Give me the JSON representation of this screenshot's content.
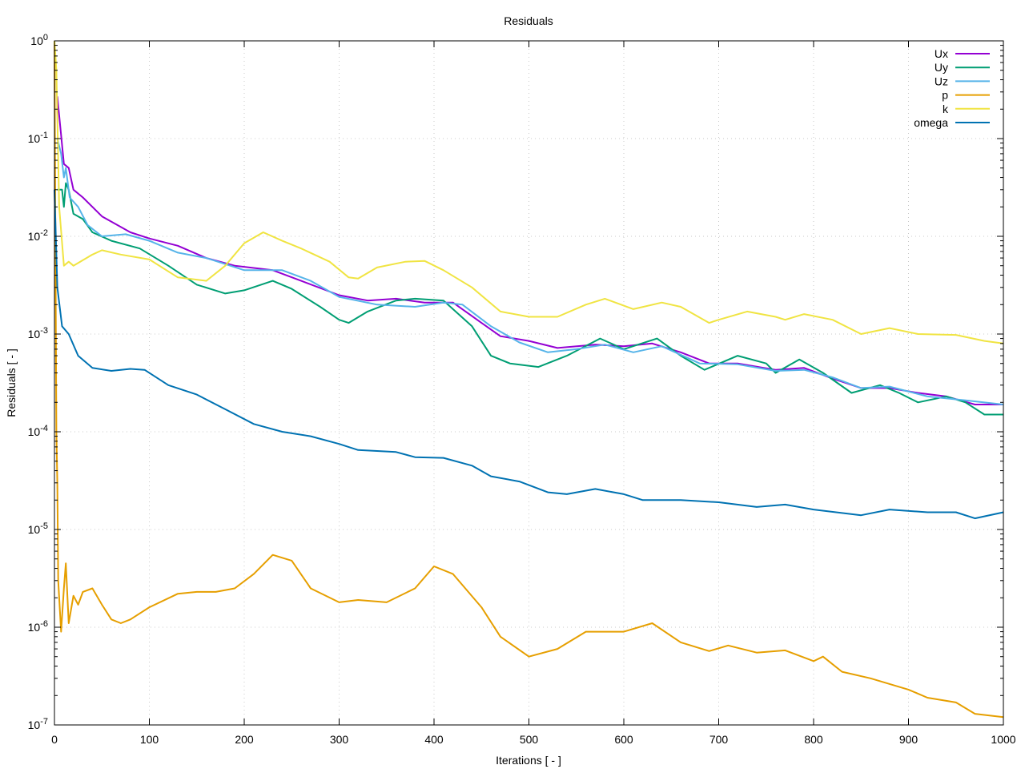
{
  "chart_data": {
    "type": "line",
    "title": "Residuals",
    "xlabel": "Iterations [ - ]",
    "ylabel": "Residuals [ - ]",
    "xlim": [
      0,
      1000
    ],
    "ylim": [
      1e-07,
      1
    ],
    "yscale": "log",
    "grid": true,
    "legend_position": "top-right",
    "xticks": [
      "0",
      "100",
      "200",
      "300",
      "400",
      "500",
      "600",
      "700",
      "800",
      "900",
      "1000"
    ],
    "yticks": [
      {
        "base": "10",
        "exp": "0",
        "value": 1
      },
      {
        "base": "10",
        "exp": "-1",
        "value": 0.1
      },
      {
        "base": "10",
        "exp": "-2",
        "value": 0.01
      },
      {
        "base": "10",
        "exp": "-3",
        "value": 0.001
      },
      {
        "base": "10",
        "exp": "-4",
        "value": 0.0001
      },
      {
        "base": "10",
        "exp": "-5",
        "value": 1e-05
      },
      {
        "base": "10",
        "exp": "-6",
        "value": 1e-06
      },
      {
        "base": "10",
        "exp": "-7",
        "value": 1e-07
      }
    ],
    "series": [
      {
        "name": "Ux",
        "color": "#9400d3",
        "points": [
          [
            3,
            0.27
          ],
          [
            10,
            0.055
          ],
          [
            15,
            0.05
          ],
          [
            20,
            0.03
          ],
          [
            30,
            0.025
          ],
          [
            50,
            0.016
          ],
          [
            80,
            0.011
          ],
          [
            100,
            0.0095
          ],
          [
            130,
            0.008
          ],
          [
            160,
            0.006
          ],
          [
            190,
            0.005
          ],
          [
            230,
            0.0045
          ],
          [
            260,
            0.0035
          ],
          [
            300,
            0.0025
          ],
          [
            330,
            0.0022
          ],
          [
            360,
            0.0023
          ],
          [
            390,
            0.0021
          ],
          [
            420,
            0.0021
          ],
          [
            450,
            0.0013
          ],
          [
            470,
            0.00095
          ],
          [
            500,
            0.00085
          ],
          [
            530,
            0.00072
          ],
          [
            570,
            0.00078
          ],
          [
            600,
            0.00075
          ],
          [
            630,
            0.0008
          ],
          [
            660,
            0.00065
          ],
          [
            690,
            0.0005
          ],
          [
            720,
            0.0005
          ],
          [
            760,
            0.00043
          ],
          [
            790,
            0.00045
          ],
          [
            820,
            0.00035
          ],
          [
            850,
            0.00028
          ],
          [
            880,
            0.00028
          ],
          [
            910,
            0.00025
          ],
          [
            940,
            0.00023
          ],
          [
            970,
            0.00019
          ],
          [
            1000,
            0.00019
          ]
        ]
      },
      {
        "name": "Uy",
        "color": "#009e73",
        "points": [
          [
            3,
            0.03
          ],
          [
            8,
            0.03
          ],
          [
            10,
            0.02
          ],
          [
            12,
            0.035
          ],
          [
            15,
            0.03
          ],
          [
            20,
            0.017
          ],
          [
            30,
            0.015
          ],
          [
            40,
            0.011
          ],
          [
            60,
            0.009
          ],
          [
            90,
            0.0075
          ],
          [
            120,
            0.005
          ],
          [
            150,
            0.0032
          ],
          [
            180,
            0.0026
          ],
          [
            200,
            0.0028
          ],
          [
            230,
            0.0035
          ],
          [
            250,
            0.0029
          ],
          [
            280,
            0.0019
          ],
          [
            300,
            0.0014
          ],
          [
            310,
            0.0013
          ],
          [
            330,
            0.0017
          ],
          [
            360,
            0.0022
          ],
          [
            380,
            0.0023
          ],
          [
            410,
            0.0022
          ],
          [
            440,
            0.0012
          ],
          [
            460,
            0.0006
          ],
          [
            480,
            0.0005
          ],
          [
            510,
            0.00046
          ],
          [
            540,
            0.0006
          ],
          [
            575,
            0.0009
          ],
          [
            600,
            0.0007
          ],
          [
            635,
            0.0009
          ],
          [
            660,
            0.0006
          ],
          [
            685,
            0.00043
          ],
          [
            720,
            0.0006
          ],
          [
            750,
            0.0005
          ],
          [
            760,
            0.0004
          ],
          [
            785,
            0.00055
          ],
          [
            810,
            0.0004
          ],
          [
            840,
            0.00025
          ],
          [
            870,
            0.0003
          ],
          [
            890,
            0.00025
          ],
          [
            910,
            0.0002
          ],
          [
            940,
            0.00023
          ],
          [
            960,
            0.0002
          ],
          [
            980,
            0.00015
          ],
          [
            1000,
            0.00015
          ]
        ]
      },
      {
        "name": "Uz",
        "color": "#56b4e9",
        "points": [
          [
            3,
            0.1
          ],
          [
            7,
            0.07
          ],
          [
            10,
            0.04
          ],
          [
            12,
            0.05
          ],
          [
            16,
            0.025
          ],
          [
            25,
            0.02
          ],
          [
            35,
            0.013
          ],
          [
            50,
            0.01
          ],
          [
            75,
            0.0105
          ],
          [
            100,
            0.009
          ],
          [
            130,
            0.0068
          ],
          [
            160,
            0.006
          ],
          [
            200,
            0.0045
          ],
          [
            240,
            0.0045
          ],
          [
            270,
            0.0035
          ],
          [
            300,
            0.0024
          ],
          [
            340,
            0.002
          ],
          [
            380,
            0.0019
          ],
          [
            410,
            0.0021
          ],
          [
            430,
            0.002
          ],
          [
            460,
            0.0012
          ],
          [
            490,
            0.00082
          ],
          [
            520,
            0.00065
          ],
          [
            550,
            0.0007
          ],
          [
            580,
            0.00078
          ],
          [
            610,
            0.00065
          ],
          [
            640,
            0.00075
          ],
          [
            680,
            0.0005
          ],
          [
            720,
            0.00049
          ],
          [
            760,
            0.00042
          ],
          [
            790,
            0.00043
          ],
          [
            820,
            0.00036
          ],
          [
            850,
            0.00028
          ],
          [
            880,
            0.00029
          ],
          [
            920,
            0.00023
          ],
          [
            960,
            0.00021
          ],
          [
            1000,
            0.00019
          ]
        ]
      },
      {
        "name": "p",
        "color": "#e69f00",
        "points": [
          [
            0,
            1
          ],
          [
            2,
            0.0001
          ],
          [
            3,
            3e-05
          ],
          [
            4,
            3e-06
          ],
          [
            7,
            9e-07
          ],
          [
            10,
            2.5e-06
          ],
          [
            12,
            4.5e-06
          ],
          [
            15,
            1.1e-06
          ],
          [
            20,
            2.1e-06
          ],
          [
            25,
            1.7e-06
          ],
          [
            30,
            2.3e-06
          ],
          [
            40,
            2.5e-06
          ],
          [
            50,
            1.7e-06
          ],
          [
            60,
            1.2e-06
          ],
          [
            70,
            1.1e-06
          ],
          [
            80,
            1.2e-06
          ],
          [
            100,
            1.6e-06
          ],
          [
            130,
            2.2e-06
          ],
          [
            150,
            2.3e-06
          ],
          [
            170,
            2.3e-06
          ],
          [
            190,
            2.5e-06
          ],
          [
            210,
            3.5e-06
          ],
          [
            230,
            5.5e-06
          ],
          [
            250,
            4.8e-06
          ],
          [
            270,
            2.5e-06
          ],
          [
            300,
            1.8e-06
          ],
          [
            320,
            1.9e-06
          ],
          [
            350,
            1.8e-06
          ],
          [
            380,
            2.5e-06
          ],
          [
            400,
            4.2e-06
          ],
          [
            420,
            3.5e-06
          ],
          [
            450,
            1.6e-06
          ],
          [
            470,
            8e-07
          ],
          [
            500,
            5e-07
          ],
          [
            530,
            6e-07
          ],
          [
            560,
            9e-07
          ],
          [
            600,
            9e-07
          ],
          [
            630,
            1.1e-06
          ],
          [
            660,
            7e-07
          ],
          [
            690,
            5.7e-07
          ],
          [
            710,
            6.5e-07
          ],
          [
            740,
            5.5e-07
          ],
          [
            770,
            5.8e-07
          ],
          [
            800,
            4.5e-07
          ],
          [
            810,
            5e-07
          ],
          [
            830,
            3.5e-07
          ],
          [
            860,
            3e-07
          ],
          [
            900,
            2.3e-07
          ],
          [
            920,
            1.9e-07
          ],
          [
            950,
            1.7e-07
          ],
          [
            970,
            1.3e-07
          ],
          [
            1000,
            1.2e-07
          ]
        ]
      },
      {
        "name": "k",
        "color": "#f0e442",
        "points": [
          [
            0,
            1
          ],
          [
            2,
            0.5
          ],
          [
            5,
            0.02
          ],
          [
            10,
            0.005
          ],
          [
            15,
            0.0055
          ],
          [
            20,
            0.005
          ],
          [
            40,
            0.0065
          ],
          [
            50,
            0.0072
          ],
          [
            70,
            0.0065
          ],
          [
            100,
            0.0058
          ],
          [
            130,
            0.0038
          ],
          [
            160,
            0.0035
          ],
          [
            180,
            0.005
          ],
          [
            200,
            0.0085
          ],
          [
            220,
            0.011
          ],
          [
            240,
            0.009
          ],
          [
            260,
            0.0075
          ],
          [
            290,
            0.0055
          ],
          [
            310,
            0.0038
          ],
          [
            320,
            0.0037
          ],
          [
            340,
            0.0048
          ],
          [
            370,
            0.0055
          ],
          [
            390,
            0.0056
          ],
          [
            410,
            0.0045
          ],
          [
            440,
            0.003
          ],
          [
            470,
            0.0017
          ],
          [
            500,
            0.0015
          ],
          [
            530,
            0.0015
          ],
          [
            560,
            0.002
          ],
          [
            580,
            0.0023
          ],
          [
            610,
            0.0018
          ],
          [
            640,
            0.0021
          ],
          [
            660,
            0.0019
          ],
          [
            690,
            0.0013
          ],
          [
            700,
            0.0014
          ],
          [
            730,
            0.0017
          ],
          [
            760,
            0.0015
          ],
          [
            770,
            0.0014
          ],
          [
            790,
            0.0016
          ],
          [
            820,
            0.0014
          ],
          [
            850,
            0.001
          ],
          [
            880,
            0.00115
          ],
          [
            910,
            0.001
          ],
          [
            950,
            0.00098
          ],
          [
            980,
            0.00085
          ],
          [
            1000,
            0.0008
          ]
        ]
      },
      {
        "name": "omega",
        "color": "#0072b2",
        "points": [
          [
            0,
            0.03
          ],
          [
            3,
            0.003
          ],
          [
            8,
            0.0012
          ],
          [
            15,
            0.001
          ],
          [
            25,
            0.0006
          ],
          [
            40,
            0.00045
          ],
          [
            60,
            0.00042
          ],
          [
            80,
            0.00044
          ],
          [
            95,
            0.00043
          ],
          [
            120,
            0.0003
          ],
          [
            150,
            0.00024
          ],
          [
            180,
            0.00017
          ],
          [
            210,
            0.00012
          ],
          [
            240,
            0.0001
          ],
          [
            270,
            9e-05
          ],
          [
            300,
            7.5e-05
          ],
          [
            320,
            6.5e-05
          ],
          [
            360,
            6.2e-05
          ],
          [
            380,
            5.5e-05
          ],
          [
            410,
            5.4e-05
          ],
          [
            440,
            4.5e-05
          ],
          [
            460,
            3.5e-05
          ],
          [
            490,
            3.1e-05
          ],
          [
            520,
            2.4e-05
          ],
          [
            540,
            2.3e-05
          ],
          [
            570,
            2.6e-05
          ],
          [
            600,
            2.3e-05
          ],
          [
            620,
            2e-05
          ],
          [
            660,
            2e-05
          ],
          [
            700,
            1.9e-05
          ],
          [
            740,
            1.7e-05
          ],
          [
            770,
            1.8e-05
          ],
          [
            800,
            1.6e-05
          ],
          [
            850,
            1.4e-05
          ],
          [
            880,
            1.6e-05
          ],
          [
            920,
            1.5e-05
          ],
          [
            950,
            1.5e-05
          ],
          [
            970,
            1.3e-05
          ],
          [
            1000,
            1.5e-05
          ]
        ]
      }
    ]
  }
}
